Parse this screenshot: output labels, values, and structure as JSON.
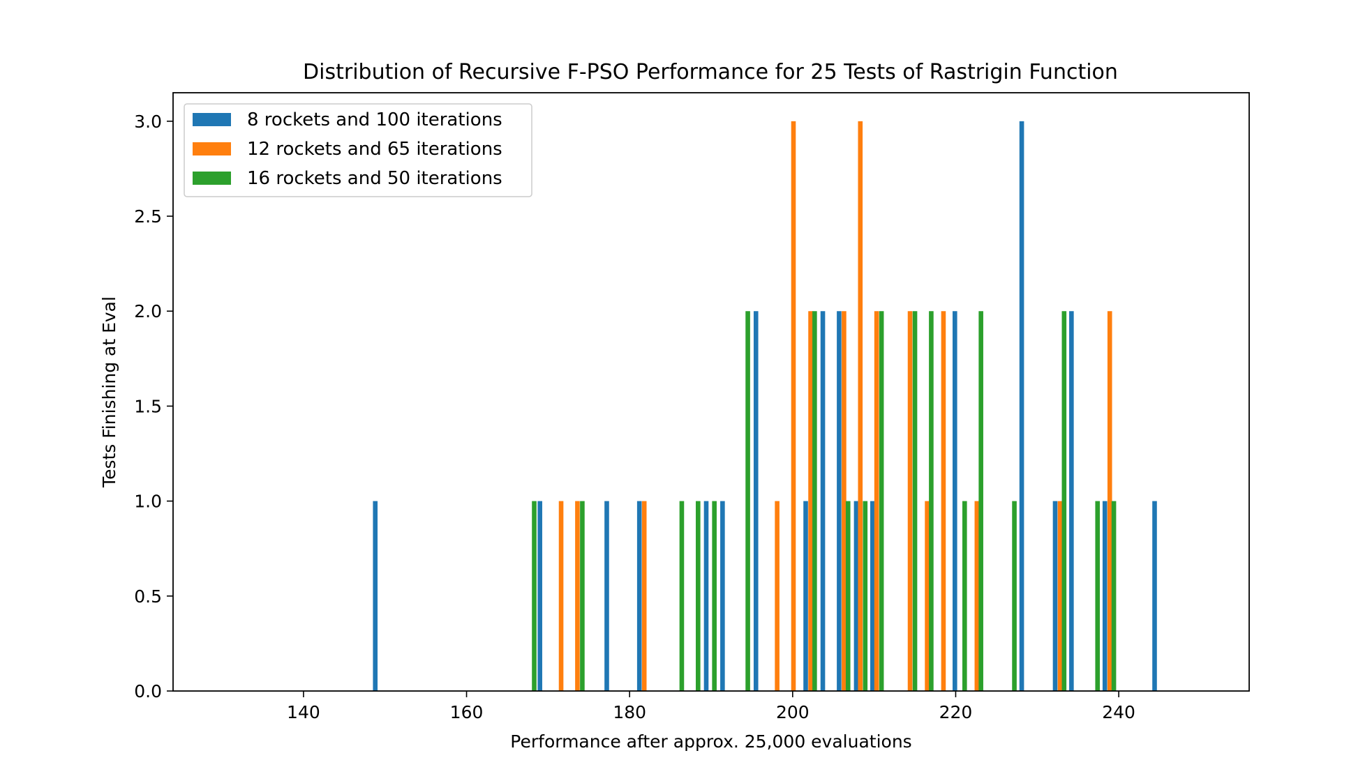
{
  "chart_data": {
    "type": "bar",
    "title": "Distribution of Recursive F-PSO Performance for 25 Tests of Rastrigin Function",
    "xlabel": "Performance after approx. 25,000 evaluations",
    "ylabel": "Tests Finishing at Eval",
    "xlim": [
      124,
      256
    ],
    "ylim": [
      0,
      3.15
    ],
    "xticks": [
      140,
      160,
      180,
      200,
      220,
      240
    ],
    "yticks": [
      0.0,
      0.5,
      1.0,
      1.5,
      2.0,
      2.5,
      3.0
    ],
    "xtick_labels": [
      "140",
      "160",
      "180",
      "200",
      "220",
      "240"
    ],
    "ytick_labels": [
      "0.0",
      "0.5",
      "1.0",
      "1.5",
      "2.0",
      "2.5",
      "3.0"
    ],
    "legend_position": "upper-left",
    "grid": false,
    "series": [
      {
        "name": "8 rockets and 100 iterations",
        "color": "#1f77b4",
        "points": [
          {
            "x": 148.8,
            "y": 1
          },
          {
            "x": 169.0,
            "y": 1
          },
          {
            "x": 177.2,
            "y": 1
          },
          {
            "x": 181.2,
            "y": 1
          },
          {
            "x": 189.4,
            "y": 1
          },
          {
            "x": 191.4,
            "y": 1
          },
          {
            "x": 195.5,
            "y": 2
          },
          {
            "x": 201.6,
            "y": 1
          },
          {
            "x": 203.7,
            "y": 2
          },
          {
            "x": 205.7,
            "y": 2
          },
          {
            "x": 207.8,
            "y": 1
          },
          {
            "x": 209.8,
            "y": 1
          },
          {
            "x": 219.9,
            "y": 2
          },
          {
            "x": 228.1,
            "y": 3
          },
          {
            "x": 232.2,
            "y": 1
          },
          {
            "x": 234.2,
            "y": 2
          },
          {
            "x": 238.3,
            "y": 1
          },
          {
            "x": 244.4,
            "y": 1
          }
        ]
      },
      {
        "name": "12 rockets and 65 iterations",
        "color": "#ff7f0e",
        "points": [
          {
            "x": 171.6,
            "y": 1
          },
          {
            "x": 173.6,
            "y": 1
          },
          {
            "x": 181.8,
            "y": 1
          },
          {
            "x": 198.1,
            "y": 1
          },
          {
            "x": 200.1,
            "y": 3
          },
          {
            "x": 202.2,
            "y": 2
          },
          {
            "x": 206.3,
            "y": 2
          },
          {
            "x": 208.3,
            "y": 3
          },
          {
            "x": 210.3,
            "y": 2
          },
          {
            "x": 214.4,
            "y": 2
          },
          {
            "x": 216.5,
            "y": 1
          },
          {
            "x": 218.5,
            "y": 2
          },
          {
            "x": 222.6,
            "y": 1
          },
          {
            "x": 232.8,
            "y": 1
          },
          {
            "x": 238.9,
            "y": 2
          }
        ]
      },
      {
        "name": "16 rockets and 50 iterations",
        "color": "#2ca02c",
        "points": [
          {
            "x": 168.3,
            "y": 1
          },
          {
            "x": 174.2,
            "y": 1
          },
          {
            "x": 186.4,
            "y": 1
          },
          {
            "x": 188.4,
            "y": 1
          },
          {
            "x": 190.4,
            "y": 1
          },
          {
            "x": 194.5,
            "y": 2
          },
          {
            "x": 202.7,
            "y": 2
          },
          {
            "x": 206.8,
            "y": 1
          },
          {
            "x": 208.9,
            "y": 1
          },
          {
            "x": 210.9,
            "y": 2
          },
          {
            "x": 215.0,
            "y": 2
          },
          {
            "x": 217.0,
            "y": 2
          },
          {
            "x": 221.1,
            "y": 1
          },
          {
            "x": 223.1,
            "y": 2
          },
          {
            "x": 227.2,
            "y": 1
          },
          {
            "x": 233.3,
            "y": 2
          },
          {
            "x": 237.4,
            "y": 1
          },
          {
            "x": 239.4,
            "y": 1
          }
        ]
      }
    ]
  }
}
